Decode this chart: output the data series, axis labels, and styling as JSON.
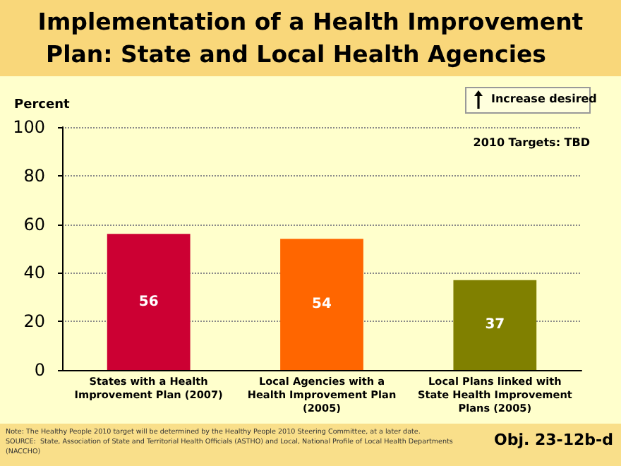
{
  "chart_data": {
    "type": "bar",
    "title": "Implementation of a Health Improvement\n Plan: State and Local Health Agencies",
    "ylabel": "Percent",
    "categories": [
      "States with a Health\nImprovement Plan (2007)",
      "Local Agencies with a\nHealth Improvement Plan\n(2005)",
      "Local Plans linked with\nState Health Improvement\nPlans (2005)"
    ],
    "values": [
      56,
      54,
      37
    ],
    "colors": [
      "#cc0033",
      "#ff6600",
      "#808000"
    ],
    "ylim": [
      0,
      100
    ],
    "yticks": [
      0,
      20,
      40,
      60,
      80,
      100
    ],
    "grid": "y",
    "data_labels": true,
    "annotations": [
      "Increase desired",
      "2010 Targets: TBD",
      "Note: The Healthy People 2010 target will be determined by the Healthy People 2010 Steering Committee, at a later date.\nSOURCE:  State, Association of State and Territorial Health Officials (ASTHO) and Local, National Profile of Local Health Departments (NACCHO)",
      "Obj. 23-12b-d"
    ]
  }
}
